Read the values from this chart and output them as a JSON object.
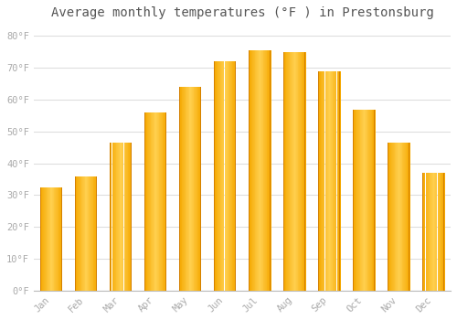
{
  "months": [
    "Jan",
    "Feb",
    "Mar",
    "Apr",
    "May",
    "Jun",
    "Jul",
    "Aug",
    "Sep",
    "Oct",
    "Nov",
    "Dec"
  ],
  "temperatures": [
    32.5,
    36.0,
    46.5,
    56.0,
    64.0,
    72.0,
    75.5,
    75.0,
    69.0,
    57.0,
    46.5,
    37.0
  ],
  "bar_color_outer": "#F5A800",
  "bar_color_inner": "#FFD050",
  "background_color": "#FFFFFF",
  "grid_color": "#DDDDDD",
  "title": "Average monthly temperatures (°F ) in Prestonsburg",
  "title_fontsize": 10,
  "tick_label_color": "#AAAAAA",
  "title_color": "#555555",
  "ylim": [
    0,
    83
  ],
  "yticks": [
    0,
    10,
    20,
    30,
    40,
    50,
    60,
    70,
    80
  ],
  "ytick_labels": [
    "0°F",
    "10°F",
    "20°F",
    "30°F",
    "40°F",
    "50°F",
    "60°F",
    "70°F",
    "80°F"
  ],
  "bar_width": 0.62,
  "gradient_steps": 30
}
